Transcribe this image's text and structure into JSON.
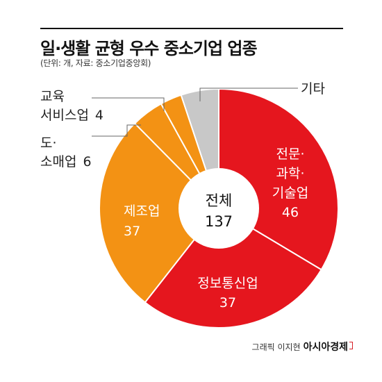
{
  "title": "일·생활 균형 우수 중소기업 업종",
  "subtitle": "(단위: 개, 자료: 중소기업중앙회)",
  "center_label": {
    "line1": "전체",
    "line2": "137"
  },
  "credit": {
    "text": "그래픽 이지현",
    "brand": "아시아경제"
  },
  "colors": {
    "red": "#e5161e",
    "orange": "#f39214",
    "gray": "#c8c8c8"
  },
  "chart_data": {
    "type": "pie",
    "variant": "donut",
    "total": 137,
    "slices": [
      {
        "label_lines": [
          "전문·",
          "과학·",
          "기술업"
        ],
        "value": 46,
        "value_text": "46",
        "color": "#e5161e"
      },
      {
        "label_lines": [
          "정보통신업"
        ],
        "value": 37,
        "value_text": "37",
        "color": "#e5161e"
      },
      {
        "label_lines": [
          "제조업"
        ],
        "value": 37,
        "value_text": "37",
        "color": "#f39214"
      },
      {
        "label_lines": [
          "도·",
          "소매업"
        ],
        "value": 6,
        "value_text": "6",
        "color": "#f39214"
      },
      {
        "label_lines": [
          "교육",
          "서비스업"
        ],
        "value": 4,
        "value_text": "4",
        "color": "#f39214"
      },
      {
        "label_lines": [
          "기타"
        ],
        "value": 7,
        "value_text": "",
        "color": "#c8c8c8"
      }
    ]
  }
}
